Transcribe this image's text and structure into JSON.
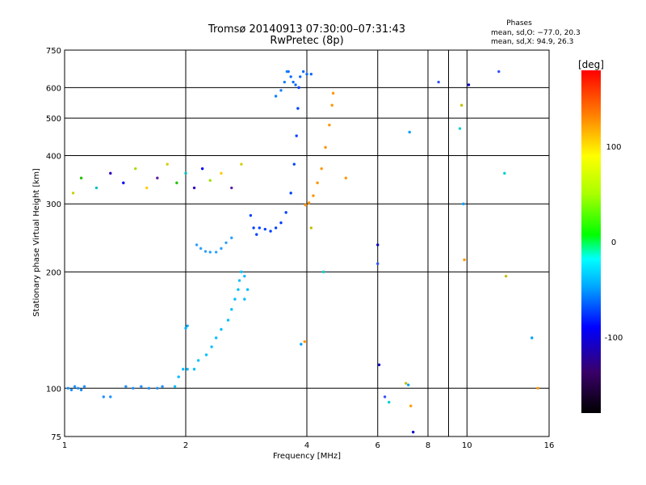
{
  "chart_data": {
    "type": "scatter",
    "title": "Tromsø 20140913 07:30:00–07:31:43",
    "subtitle": "RwPretec (8p)",
    "xlabel": "Frequency [MHz]",
    "ylabel": "Stationary phase Virtual Height [km]",
    "x_scale": "log",
    "y_scale": "log",
    "xlim": [
      1,
      16
    ],
    "ylim": [
      75,
      750
    ],
    "x_ticks": [
      1,
      2,
      4,
      6,
      8,
      10,
      16
    ],
    "x_minor_gridlines": [
      9
    ],
    "y_ticks": [
      75,
      100,
      200,
      300,
      400,
      500,
      600,
      750
    ],
    "grid": true,
    "stats": {
      "title": "Phases",
      "line1": "mean, sd,O: −77.0, 20.3",
      "line2": "mean, sd,X:  94.9, 26.3"
    },
    "colorbar": {
      "label": "[deg]",
      "min": -180,
      "max": 180,
      "ticks": [
        100,
        0,
        -100
      ]
    },
    "series": [
      {
        "values": [
          [
            1.02,
            100
          ],
          [
            1.04,
            99
          ],
          [
            1.06,
            101
          ],
          [
            1.08,
            100
          ],
          [
            1.1,
            99
          ],
          [
            1.12,
            101
          ],
          [
            1.25,
            95
          ],
          [
            1.3,
            95
          ],
          [
            1.42,
            101
          ],
          [
            1.48,
            100
          ],
          [
            1.55,
            101
          ],
          [
            1.62,
            100
          ],
          [
            1.7,
            100
          ],
          [
            1.75,
            101
          ]
        ]
      },
      {
        "values": [
          [
            1.88,
            101
          ],
          [
            1.92,
            107
          ],
          [
            1.97,
            112
          ],
          [
            2.02,
            112
          ],
          [
            2.1,
            112
          ],
          [
            2.15,
            118
          ],
          [
            2.25,
            122
          ],
          [
            2.32,
            128
          ],
          [
            2.38,
            135
          ],
          [
            2.45,
            142
          ],
          [
            2.55,
            150
          ],
          [
            2.6,
            160
          ],
          [
            2.65,
            170
          ],
          [
            2.7,
            180
          ],
          [
            2.72,
            190
          ],
          [
            2.75,
            200
          ],
          [
            2.8,
            195
          ],
          [
            2.85,
            180
          ],
          [
            2.8,
            170
          ]
        ]
      },
      {
        "values": [
          [
            2.0,
            143
          ],
          [
            2.02,
            145
          ]
        ]
      },
      {
        "values": [
          [
            2.13,
            235
          ],
          [
            2.18,
            230
          ],
          [
            2.24,
            226
          ],
          [
            2.3,
            225
          ],
          [
            2.38,
            225
          ],
          [
            2.45,
            230
          ],
          [
            2.52,
            238
          ],
          [
            2.6,
            245
          ]
        ]
      },
      {
        "values": [
          [
            2.9,
            280
          ],
          [
            2.95,
            260
          ],
          [
            3.0,
            250
          ],
          [
            3.05,
            260
          ],
          [
            3.15,
            258
          ],
          [
            3.25,
            255
          ],
          [
            3.35,
            260
          ],
          [
            3.45,
            268
          ],
          [
            3.55,
            285
          ],
          [
            3.65,
            320
          ],
          [
            3.72,
            380
          ],
          [
            3.77,
            450
          ],
          [
            3.8,
            530
          ],
          [
            3.82,
            600
          ]
        ]
      },
      {
        "values": [
          [
            3.6,
            660
          ],
          [
            3.65,
            640
          ],
          [
            3.7,
            620
          ],
          [
            3.75,
            610
          ],
          [
            3.85,
            640
          ],
          [
            3.92,
            660
          ],
          [
            4.0,
            650
          ],
          [
            4.1,
            650
          ]
        ]
      },
      {
        "values": [
          [
            3.35,
            570
          ],
          [
            3.45,
            590
          ],
          [
            3.52,
            620
          ],
          [
            3.57,
            660
          ]
        ]
      },
      {
        "values": [
          [
            3.97,
            298
          ],
          [
            4.05,
            302
          ],
          [
            4.15,
            315
          ],
          [
            4.25,
            340
          ],
          [
            4.35,
            370
          ],
          [
            4.45,
            420
          ],
          [
            4.55,
            480
          ],
          [
            4.62,
            540
          ],
          [
            4.65,
            580
          ]
        ]
      },
      {
        "values": [
          [
            1.05,
            320
          ],
          [
            1.1,
            350
          ],
          [
            1.2,
            330
          ],
          [
            1.3,
            360
          ],
          [
            1.4,
            340
          ],
          [
            1.5,
            370
          ],
          [
            1.6,
            330
          ],
          [
            1.7,
            350
          ],
          [
            1.8,
            380
          ],
          [
            1.9,
            340
          ],
          [
            2.0,
            360
          ],
          [
            2.1,
            330
          ],
          [
            2.2,
            370
          ],
          [
            2.3,
            345
          ],
          [
            2.45,
            360
          ],
          [
            2.6,
            330
          ],
          [
            2.75,
            380
          ]
        ]
      },
      {
        "values": [
          [
            3.87,
            130
          ],
          [
            3.95,
            132
          ],
          [
            6.05,
            115
          ],
          [
            6.25,
            95
          ],
          [
            6.4,
            92
          ],
          [
            7.05,
            103
          ],
          [
            7.15,
            102
          ],
          [
            7.25,
            90
          ],
          [
            7.35,
            77
          ],
          [
            8.5,
            620
          ],
          [
            9.6,
            470
          ],
          [
            9.7,
            540
          ],
          [
            9.8,
            300
          ],
          [
            9.85,
            215
          ],
          [
            10.1,
            610
          ],
          [
            12.0,
            660
          ],
          [
            12.4,
            360
          ],
          [
            12.5,
            195
          ],
          [
            14.5,
            135
          ],
          [
            15.0,
            100
          ],
          [
            6.0,
            235
          ],
          [
            6.0,
            210
          ],
          [
            4.4,
            200
          ],
          [
            4.1,
            260
          ],
          [
            7.2,
            460
          ],
          [
            5.0,
            350
          ]
        ]
      }
    ]
  }
}
